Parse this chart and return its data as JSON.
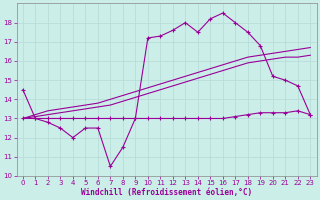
{
  "xlabel": "Windchill (Refroidissement éolien,°C)",
  "background_color": "#cceee8",
  "grid_color": "#b8ddd8",
  "line_color": "#990099",
  "xlim": [
    -0.5,
    23.5
  ],
  "ylim": [
    10,
    19
  ],
  "yticks": [
    10,
    11,
    12,
    13,
    14,
    15,
    16,
    17,
    18
  ],
  "hours": [
    0,
    1,
    2,
    3,
    4,
    5,
    6,
    7,
    8,
    9,
    10,
    11,
    12,
    13,
    14,
    15,
    16,
    17,
    18,
    19,
    20,
    21,
    22,
    23
  ],
  "line1": [
    14.5,
    13.0,
    12.8,
    12.5,
    12.0,
    12.5,
    12.5,
    10.5,
    11.5,
    13.0,
    17.2,
    17.3,
    17.6,
    18.0,
    17.5,
    18.2,
    18.5,
    18.0,
    17.5,
    16.8,
    15.2,
    15.0,
    14.7,
    13.2
  ],
  "line2": [
    13.0,
    13.0,
    13.0,
    13.0,
    13.0,
    13.0,
    13.0,
    13.0,
    13.0,
    13.0,
    13.0,
    13.0,
    13.0,
    13.0,
    13.0,
    13.0,
    13.0,
    13.1,
    13.2,
    13.3,
    13.3,
    13.3,
    13.4,
    13.2
  ],
  "line3": [
    13.0,
    13.2,
    13.4,
    13.5,
    13.6,
    13.7,
    13.8,
    14.0,
    14.2,
    14.4,
    14.6,
    14.8,
    15.0,
    15.2,
    15.4,
    15.6,
    15.8,
    16.0,
    16.2,
    16.3,
    16.4,
    16.5,
    16.6,
    16.7
  ],
  "line4": [
    13.0,
    13.1,
    13.2,
    13.3,
    13.4,
    13.5,
    13.6,
    13.7,
    13.9,
    14.1,
    14.3,
    14.5,
    14.7,
    14.9,
    15.1,
    15.3,
    15.5,
    15.7,
    15.9,
    16.0,
    16.1,
    16.2,
    16.2,
    16.3
  ]
}
